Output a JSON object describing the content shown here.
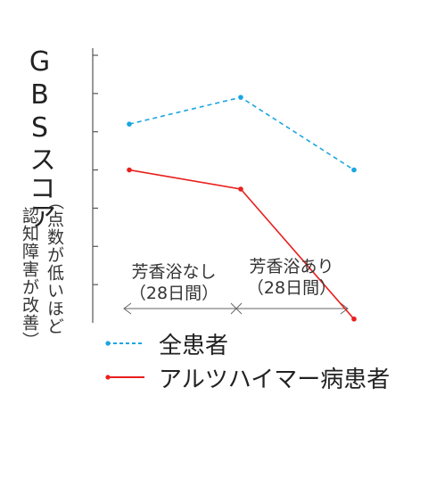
{
  "chart_data": {
    "type": "line",
    "ylabel": "GBSスコア",
    "ylabel_note": [
      "（点数が低いほど",
      "認知障害が改善）"
    ],
    "periods": [
      {
        "label_line1": "芳香浴なし",
        "label_line2": "（28日間）"
      },
      {
        "label_line1": "芳香浴あり",
        "label_line2": "（28日間）"
      }
    ],
    "y_ticks": [
      1,
      2,
      3,
      4,
      5,
      6,
      7
    ],
    "ylim": [
      0,
      7
    ],
    "grid": false,
    "legend_position": "bottom",
    "series": [
      {
        "name": "全患者",
        "values": [
          5.2,
          5.9,
          4.0
        ],
        "color": "#1aa6e0",
        "dashed": true
      },
      {
        "name": "アルツハイマー病患者",
        "values": [
          4.0,
          3.5,
          0.1
        ],
        "color": "#e8201e",
        "dashed": false
      }
    ]
  }
}
